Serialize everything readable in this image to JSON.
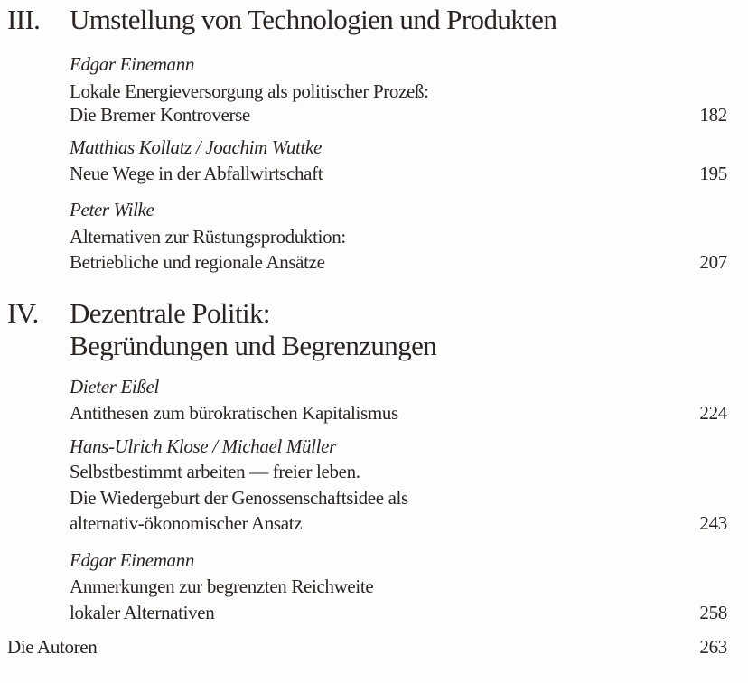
{
  "sections": [
    {
      "numeral": "III.",
      "title_lines": [
        "Umstellung von Technologien und Produkten"
      ],
      "entries": [
        {
          "author": "Edgar Einemann",
          "title_lines": [
            "Lokale Energieversorgung als politischer Prozeß:",
            "Die Bremer Kontroverse"
          ],
          "page": "182"
        },
        {
          "author": "Matthias Kollatz / Joachim Wuttke",
          "title_lines": [
            "Neue Wege in der Abfallwirtschaft"
          ],
          "page": "195"
        },
        {
          "author": "Peter Wilke",
          "title_lines": [
            "Alternativen zur Rüstungsproduktion:",
            "Betriebliche und regionale Ansätze"
          ],
          "page": "207"
        }
      ]
    },
    {
      "numeral": "IV.",
      "title_lines": [
        "Dezentrale Politik:",
        "Begründungen und Begrenzungen"
      ],
      "entries": [
        {
          "author": "Dieter Eißel",
          "title_lines": [
            "Antithesen zum bürokratischen Kapitalismus"
          ],
          "page": "224"
        },
        {
          "author": "Hans-Ulrich Klose / Michael Müller",
          "title_lines": [
            "Selbstbestimmt arbeiten — freier leben.",
            "Die Wiedergeburt der Genossenschaftsidee als",
            "alternativ-ökonomischer Ansatz"
          ],
          "page": "243"
        },
        {
          "author": "Edgar Einemann",
          "title_lines": [
            "Anmerkungen zur begrenzten Reichweite",
            "lokaler Alternativen"
          ],
          "page": "258"
        }
      ]
    }
  ],
  "appendix": {
    "label": "Die Autoren",
    "page": "263"
  }
}
